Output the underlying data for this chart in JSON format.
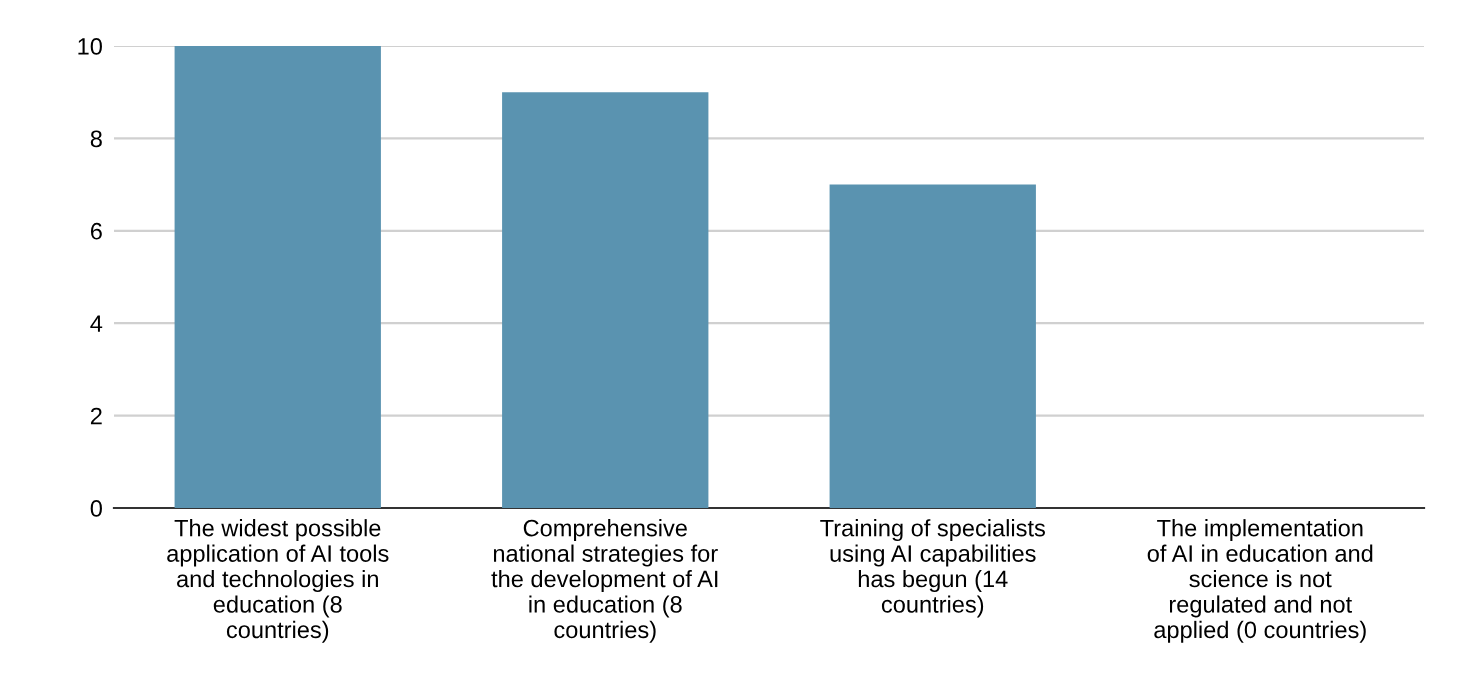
{
  "chart_data": {
    "type": "bar",
    "categories": [
      "The widest possible\napplication of AI tools\nand technologies in\neducation (8\ncountries)",
      "Comprehensive\nnational strategies for\nthe development of AI\nin education (8\ncountries)",
      "Training of specialists\nusing AI capabilities\nhas begun (14\ncountries)",
      "The implementation\nof AI in education and\nscience is not\nregulated and not\napplied (0 countries)"
    ],
    "values": [
      10,
      9,
      7,
      0
    ],
    "color": "#5a93b0",
    "ylim": [
      0,
      10
    ],
    "yticks": [
      0,
      2,
      4,
      6,
      8,
      10
    ],
    "grid": "y",
    "legend": false
  }
}
